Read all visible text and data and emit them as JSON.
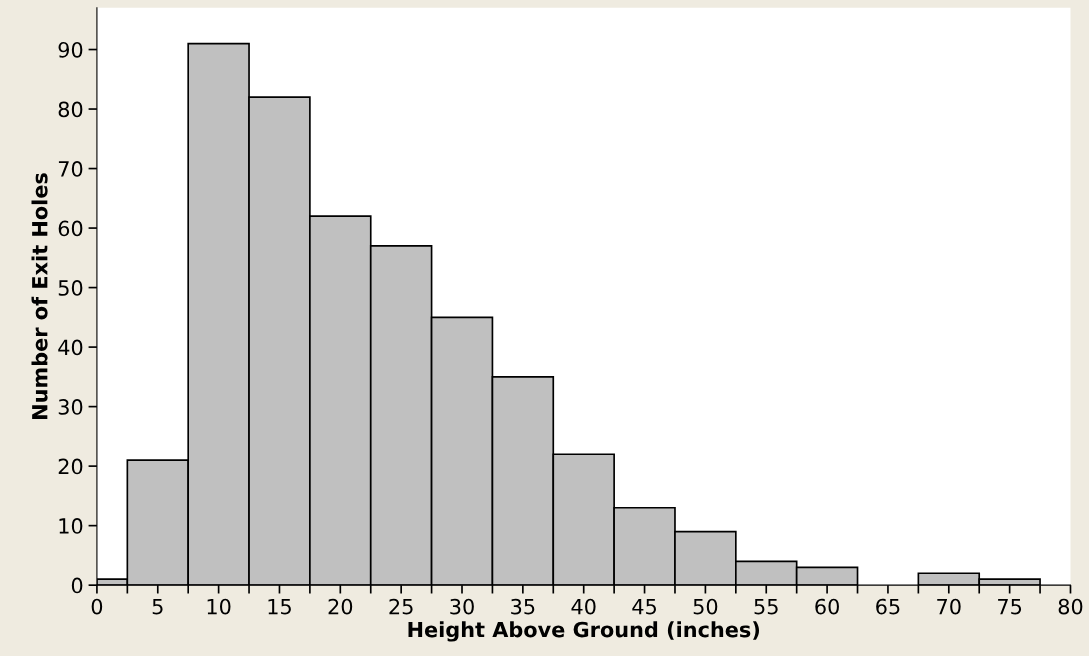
{
  "chart_data": {
    "type": "histogram",
    "xlabel": "Height Above Ground (inches)",
    "ylabel": "Number of Exit Holes",
    "bins": [
      0,
      2.5,
      7.5,
      12.5,
      17.5,
      22.5,
      27.5,
      32.5,
      37.5,
      42.5,
      47.5,
      52.5,
      57.5,
      62.5,
      67.5,
      72.5,
      77.5
    ],
    "values": [
      1,
      21,
      91,
      82,
      62,
      57,
      45,
      35,
      22,
      13,
      9,
      4,
      3,
      0,
      2,
      1
    ],
    "color": "#c0c0c0",
    "xlim": [
      0,
      80
    ],
    "ylim": [
      0,
      97
    ],
    "xticks": [
      0,
      {
        "value": 2.5,
        "label": null
      },
      5,
      {
        "value": 7.5,
        "label": null
      },
      10,
      {
        "value": 12.5,
        "label": null
      },
      15,
      {
        "value": 17.5,
        "label": null
      },
      20,
      {
        "value": 22.5,
        "label": null
      },
      25,
      {
        "value": 27.5,
        "label": null
      },
      30,
      {
        "value": 32.5,
        "label": null
      },
      35,
      {
        "value": 37.5,
        "label": null
      },
      40,
      {
        "value": 42.5,
        "label": null
      },
      45,
      {
        "value": 47.5,
        "label": null
      },
      50,
      {
        "value": 52.5,
        "label": null
      },
      55,
      {
        "value": 57.5,
        "label": null
      },
      60,
      {
        "value": 62.5,
        "label": null
      },
      65,
      {
        "value": 67.5,
        "label": null
      },
      70,
      {
        "value": 72.5,
        "label": null
      },
      75,
      {
        "value": 77.5,
        "label": null
      },
      80
    ],
    "yticks": [
      0,
      10,
      20,
      30,
      40,
      50,
      60,
      70,
      80,
      90
    ],
    "grid": false
  }
}
